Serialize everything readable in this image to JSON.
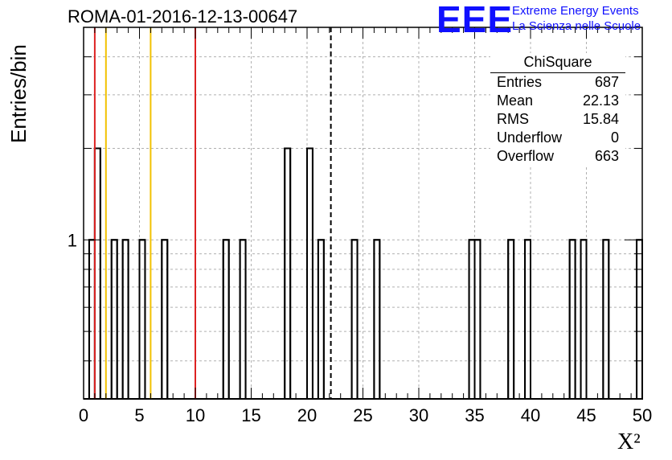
{
  "title": "ROMA-01-2016-12-13-00647",
  "logo": {
    "mark": "EEE",
    "line1": "Extreme Energy Events",
    "line2": "La Scienza nelle Scuole"
  },
  "stats": {
    "name": "ChiSquare",
    "rows": [
      {
        "label": "Entries",
        "value": "687"
      },
      {
        "label": "Mean",
        "value": "22.13"
      },
      {
        "label": "RMS",
        "value": "15.84"
      },
      {
        "label": "Underflow",
        "value": "0"
      },
      {
        "label": "Overflow",
        "value": "663"
      }
    ]
  },
  "chart_data": {
    "type": "bar",
    "histogram": true,
    "ylabel": "Entries/bin",
    "xlabel": "X²",
    "xlim": [
      0,
      50
    ],
    "y_scale": "log",
    "ylim": [
      0.3,
      5
    ],
    "bin_width": 0.5,
    "grid": true,
    "x_ticks": [
      0,
      5,
      10,
      15,
      20,
      25,
      30,
      35,
      40,
      45,
      50
    ],
    "y_tick_labels": [
      {
        "value": 1,
        "label": "1"
      }
    ],
    "bins": [
      {
        "x": 0.5,
        "count": 1
      },
      {
        "x": 1.0,
        "count": 2
      },
      {
        "x": 2.5,
        "count": 1
      },
      {
        "x": 3.5,
        "count": 1
      },
      {
        "x": 5.0,
        "count": 1
      },
      {
        "x": 7.0,
        "count": 1
      },
      {
        "x": 12.5,
        "count": 1
      },
      {
        "x": 14.0,
        "count": 1
      },
      {
        "x": 18.0,
        "count": 2
      },
      {
        "x": 20.0,
        "count": 2
      },
      {
        "x": 21.0,
        "count": 1
      },
      {
        "x": 24.0,
        "count": 1
      },
      {
        "x": 26.0,
        "count": 1
      },
      {
        "x": 34.5,
        "count": 1
      },
      {
        "x": 35.0,
        "count": 1
      },
      {
        "x": 38.0,
        "count": 1
      },
      {
        "x": 39.5,
        "count": 1
      },
      {
        "x": 43.5,
        "count": 1
      },
      {
        "x": 44.5,
        "count": 1
      },
      {
        "x": 46.5,
        "count": 1
      },
      {
        "x": 49.5,
        "count": 1
      }
    ],
    "vertical_lines": [
      {
        "x": 1,
        "color": "#dd2222",
        "style": "solid"
      },
      {
        "x": 2,
        "color": "#f2c200",
        "style": "solid"
      },
      {
        "x": 6,
        "color": "#f2c200",
        "style": "solid"
      },
      {
        "x": 10,
        "color": "#dd2222",
        "style": "solid"
      },
      {
        "x": 22.13,
        "color": "#000000",
        "style": "dashed"
      }
    ],
    "colors": {
      "histogram": "#000000",
      "grid": "#b0b0b0"
    }
  }
}
